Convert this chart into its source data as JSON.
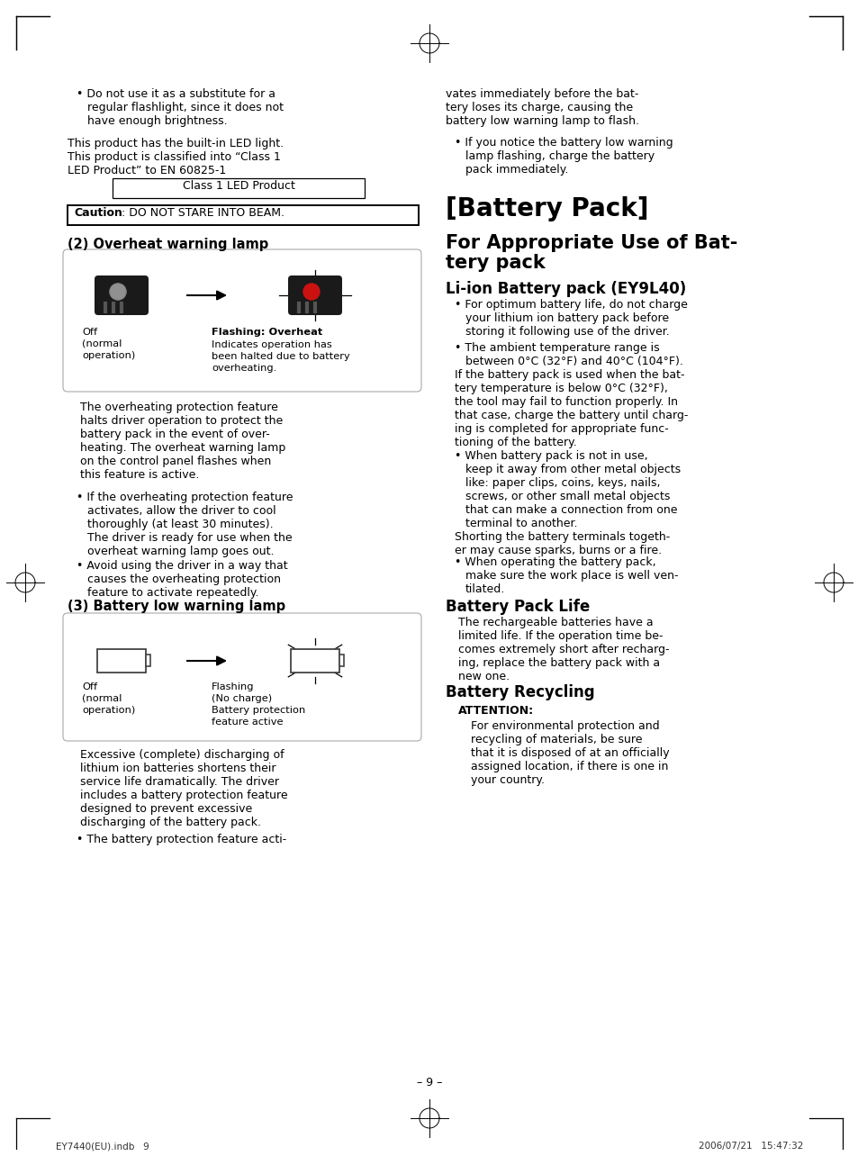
{
  "bg_color": "#ffffff",
  "page_number": "– 9 –",
  "footer_left": "EY7440(EU).indb   9",
  "footer_right": "2006/07/21   15:47:32"
}
